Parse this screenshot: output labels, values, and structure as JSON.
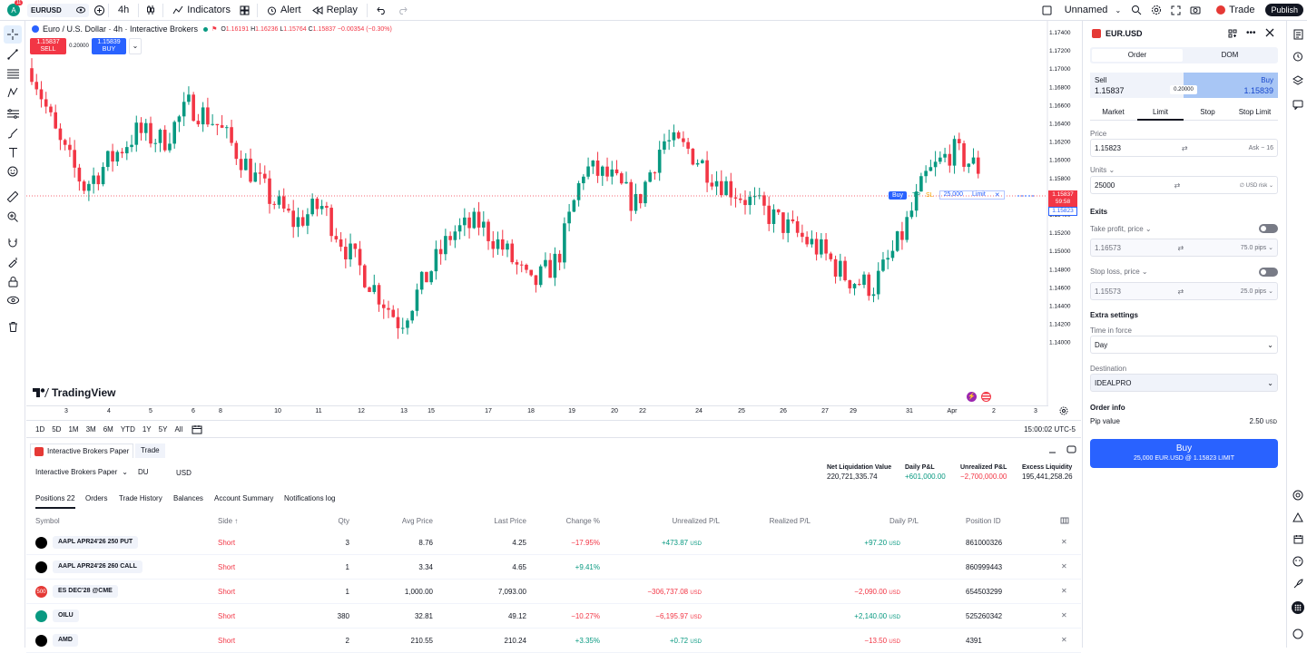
{
  "topbar": {
    "avatar": "A",
    "avatar_badge": "11",
    "symbol": "EURUSD",
    "interval": "4h",
    "indicators": "Indicators",
    "alert": "Alert",
    "replay": "Replay",
    "layout_name": "Unnamed",
    "trade": "Trade",
    "publish": "Publish"
  },
  "chart": {
    "title": "Euro / U.S. Dollar · 4h · Interactive Brokers",
    "ohlc": {
      "o_label": "O",
      "o": "1.16191",
      "h_label": "H",
      "h": "1.16236",
      "l_label": "L",
      "l": "1.15764",
      "c_label": "C",
      "c": "1.15837",
      "chg": "−0.00354 (−0.30%)"
    },
    "sell_price": "1.15837",
    "sell_label": "SELL",
    "spread": "0.20000",
    "buy_price": "1.15839",
    "buy_label": "BUY",
    "order_line": {
      "side": "Buy",
      "tp": "TP",
      "sl": "SL",
      "qty": "25,000",
      "type": "Limit"
    },
    "price_tag": "1.15837",
    "countdown": "59:58",
    "bid_tag": "1.15823",
    "y_ticks": [
      "1.17400",
      "1.17200",
      "1.17000",
      "1.16800",
      "1.16600",
      "1.16400",
      "1.16200",
      "1.16000",
      "1.15800",
      "1.15600",
      "1.15400",
      "1.15200",
      "1.15000",
      "1.14800",
      "1.14600",
      "1.14400",
      "1.14200",
      "1.14000"
    ],
    "x_ticks": [
      "3",
      "4",
      "5",
      "6",
      "8",
      "10",
      "11",
      "12",
      "13",
      "15",
      "17",
      "18",
      "19",
      "20",
      "22",
      "24",
      "25",
      "26",
      "27",
      "29",
      "31",
      "Apr",
      "2",
      "3"
    ],
    "logo": "TradingView"
  },
  "timebar": {
    "ranges": [
      "1D",
      "5D",
      "1M",
      "3M",
      "6M",
      "YTD",
      "1Y",
      "5Y",
      "All"
    ],
    "clock": "15:00:02 UTC-5"
  },
  "account": {
    "broker": "Interactive Brokers Paper",
    "trade_tab": "Trade",
    "account_name": "Interactive Brokers Paper",
    "account_id": "DU",
    "currency": "USD",
    "stats": [
      {
        "label": "Net Liquidation Value",
        "value": "220,721,335.74",
        "tone": "n"
      },
      {
        "label": "Daily P&L",
        "value": "+601,000.00",
        "tone": "p"
      },
      {
        "label": "Unrealized P&L",
        "value": "−2,700,000.00",
        "tone": "m"
      },
      {
        "label": "Excess Liquidity",
        "value": "195,441,258.26",
        "tone": "n"
      }
    ],
    "tabs": [
      "Positions 22",
      "Orders",
      "Trade History",
      "Balances",
      "Account Summary",
      "Notifications log"
    ],
    "headers": {
      "symbol": "Symbol",
      "side": "Side ↑",
      "qty": "Qty",
      "avg": "Avg Price",
      "last": "Last Price",
      "change": "Change %",
      "upl": "Unrealized P/L",
      "rpl": "Realized P/L",
      "dpl": "Daily P/L",
      "pid": "Position ID"
    },
    "rows": [
      {
        "icon": "",
        "symbol": "AAPL APR24'26 250 PUT",
        "side": "Short",
        "qty": "3",
        "avg": "8.76",
        "last": "4.25",
        "change": "−17.95%",
        "ct": "neg",
        "upl": "+473.87",
        "ut": "pos",
        "rpl": "",
        "dpl": "+97.20",
        "dt": "pos",
        "pid": "861000326"
      },
      {
        "icon": "",
        "symbol": "AAPL APR24'26 260 CALL",
        "side": "Short",
        "qty": "1",
        "avg": "3.34",
        "last": "4.65",
        "change": "+9.41%",
        "ct": "pos",
        "upl": "",
        "ut": "pos",
        "rpl": "",
        "dpl": "",
        "dt": "pos",
        "pid": "860999443"
      },
      {
        "icon": "500",
        "symbol": "ES DEC'28 @CME",
        "side": "Short",
        "qty": "1",
        "avg": "1,000.00",
        "last": "7,093.00",
        "change": "",
        "ct": "neg",
        "upl": "−306,737.08",
        "ut": "neg",
        "rpl": "",
        "dpl": "−2,090.00",
        "dt": "neg",
        "pid": "654503299"
      },
      {
        "icon": "",
        "symbol": "OILU",
        "side": "Short",
        "qty": "380",
        "avg": "32.81",
        "last": "49.12",
        "change": "−10.27%",
        "ct": "neg",
        "upl": "−6,195.97",
        "ut": "neg",
        "rpl": "",
        "dpl": "+2,140.00",
        "dt": "pos",
        "pid": "525260342"
      },
      {
        "icon": "",
        "symbol": "AMD",
        "side": "Short",
        "qty": "2",
        "avg": "210.55",
        "last": "210.24",
        "change": "+3.35%",
        "ct": "pos",
        "upl": "+0.72",
        "ut": "pos",
        "rpl": "",
        "dpl": "−13.50",
        "dt": "neg",
        "pid": "4391"
      }
    ],
    "usd": "USD"
  },
  "order": {
    "symbol": "EUR.USD",
    "tab_order": "Order",
    "tab_dom": "DOM",
    "sell_label": "Sell",
    "sell_price": "1.15837",
    "spread": "0.20000",
    "buy_label": "Buy",
    "buy_price": "1.15839",
    "types": [
      "Market",
      "Limit",
      "Stop",
      "Stop Limit"
    ],
    "price_label": "Price",
    "price_value": "1.15823",
    "price_hint": "Ask − 16",
    "units_label": "Units ⌄",
    "units_value": "25000",
    "units_hint": "∅ USD risk",
    "exits": "Exits",
    "tp_label": "Take profit, price ⌄",
    "tp_value": "1.16573",
    "tp_hint": "75.0 pips",
    "sl_label": "Stop loss, price ⌄",
    "sl_value": "1.15573",
    "sl_hint": "25.0 pips",
    "extra": "Extra settings",
    "tif_label": "Time in force",
    "tif_value": "Day",
    "dest_label": "Destination",
    "dest_value": "IDEALPRO",
    "info": "Order info",
    "pip_label": "Pip value",
    "pip_value": "2.50",
    "pip_unit": "USD",
    "submit_title": "Buy",
    "submit_sub": "25,000 EUR.USD @ 1.15823 LIMIT"
  }
}
